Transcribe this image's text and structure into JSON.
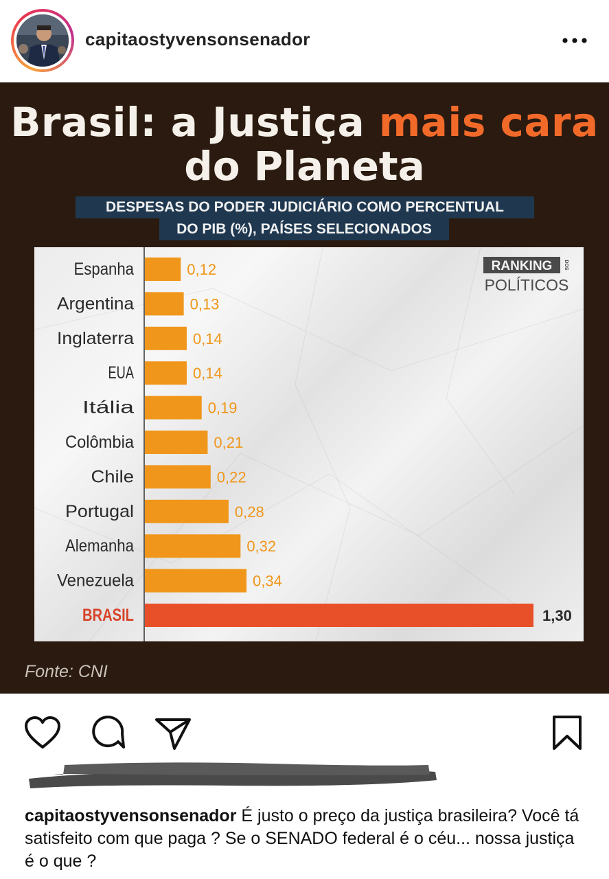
{
  "post": {
    "username": "capitaostyvensonsenador",
    "caption_username": "capitaostyvensonsenador",
    "caption_text": "É justo o preço da justiça brasileira? Você tá satisfeito com que paga ? Se o SENADO federal é o céu... nossa justiça é o que ?"
  },
  "infographic": {
    "title_part1": "Brasil: a Justiça ",
    "title_highlight": "mais cara",
    "title_line2": "do Planeta",
    "subtitle_line1": "DESPESAS DO PODER JUDICIÁRIO COMO PERCENTUAL",
    "subtitle_line2": "DO PIB (%), PAÍSES SELECIONADOS",
    "logo_top": "RANKING",
    "logo_side": "DOS",
    "logo_bottom": "POLÍTICOS",
    "source": "Fonte: CNI"
  },
  "colors": {
    "bar": "#f0961a",
    "highlight_bar": "#e8502a",
    "highlight_label": "#d8432a",
    "label": "#2a2a2a"
  },
  "chart_data": {
    "type": "bar",
    "orientation": "horizontal",
    "title": "DESPESAS DO PODER JUDICIÁRIO COMO PERCENTUAL DO PIB (%), PAÍSES SELECIONADOS",
    "categories": [
      "Espanha",
      "Argentina",
      "Inglaterra",
      "EUA",
      "Itália",
      "Colômbia",
      "Chile",
      "Portugal",
      "Alemanha",
      "Venezuela",
      "BRASIL"
    ],
    "values": [
      0.12,
      0.13,
      0.14,
      0.14,
      0.19,
      0.21,
      0.22,
      0.28,
      0.32,
      0.34,
      1.3
    ],
    "value_labels": [
      "0,12",
      "0,13",
      "0,14",
      "0,14",
      "0,19",
      "0,21",
      "0,22",
      "0,28",
      "0,32",
      "0,34",
      "1,30"
    ],
    "highlight": "BRASIL",
    "xlim": [
      0,
      1.3
    ],
    "xlabel": "",
    "ylabel": ""
  }
}
